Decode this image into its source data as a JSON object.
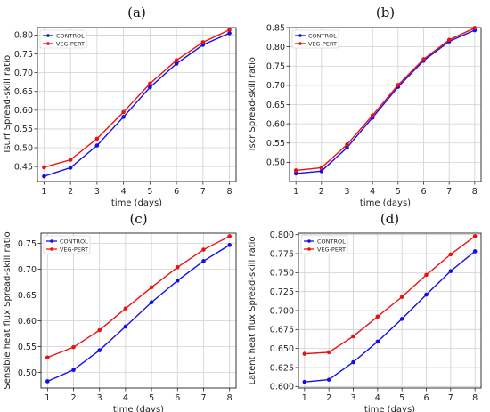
{
  "chart_data": [
    {
      "type": "line",
      "title": "(a)",
      "xlabel": "time (days)",
      "ylabel": "Tsurf Spread-skill ratio",
      "x": [
        1,
        2,
        3,
        4,
        5,
        6,
        7,
        8
      ],
      "xlim": [
        0.75,
        8.25
      ],
      "ylim": [
        0.41,
        0.82
      ],
      "yticks": [
        "0.45",
        "0.50",
        "0.55",
        "0.60",
        "0.65",
        "0.70",
        "0.75",
        "0.80"
      ],
      "xticks": [
        "1",
        "2",
        "3",
        "4",
        "5",
        "6",
        "7",
        "8"
      ],
      "grid": true,
      "legend": "top-left",
      "series": [
        {
          "name": "CONTROL",
          "color": "#1010ee",
          "values": [
            0.424,
            0.447,
            0.506,
            0.582,
            0.661,
            0.724,
            0.774,
            0.805
          ]
        },
        {
          "name": "VEG-PERT",
          "color": "#ee1010",
          "values": [
            0.448,
            0.468,
            0.524,
            0.595,
            0.671,
            0.733,
            0.781,
            0.814
          ]
        }
      ]
    },
    {
      "type": "line",
      "title": "(b)",
      "xlabel": "time (days)",
      "ylabel": "Tscr Spread-skill ratio",
      "x": [
        1,
        2,
        3,
        4,
        5,
        6,
        7,
        8
      ],
      "xlim": [
        0.75,
        8.25
      ],
      "ylim": [
        0.45,
        0.85
      ],
      "yticks": [
        "0.50",
        "0.55",
        "0.60",
        "0.65",
        "0.70",
        "0.75",
        "0.80",
        "0.85"
      ],
      "xticks": [
        "1",
        "2",
        "3",
        "4",
        "5",
        "6",
        "7",
        "8"
      ],
      "grid": true,
      "legend": "top-left",
      "series": [
        {
          "name": "CONTROL",
          "color": "#1010ee",
          "values": [
            0.471,
            0.477,
            0.538,
            0.616,
            0.696,
            0.764,
            0.814,
            0.843
          ]
        },
        {
          "name": "VEG-PERT",
          "color": "#ee1010",
          "values": [
            0.479,
            0.486,
            0.546,
            0.622,
            0.701,
            0.768,
            0.818,
            0.849
          ]
        }
      ]
    },
    {
      "type": "line",
      "title": "(c)",
      "xlabel": "time (days)",
      "ylabel": "Sensible heat flux Spread-skill ratio",
      "x": [
        1,
        2,
        3,
        4,
        5,
        6,
        7,
        8
      ],
      "xlim": [
        0.75,
        8.25
      ],
      "ylim": [
        0.47,
        0.77
      ],
      "yticks": [
        "0.50",
        "0.55",
        "0.60",
        "0.65",
        "0.70",
        "0.75"
      ],
      "xticks": [
        "1",
        "2",
        "3",
        "4",
        "5",
        "6",
        "7",
        "8"
      ],
      "grid": true,
      "legend": "top-left",
      "series": [
        {
          "name": "CONTROL",
          "color": "#1010ee",
          "values": [
            0.483,
            0.505,
            0.543,
            0.589,
            0.636,
            0.678,
            0.716,
            0.747
          ]
        },
        {
          "name": "VEG-PERT",
          "color": "#ee1010",
          "values": [
            0.529,
            0.549,
            0.582,
            0.624,
            0.665,
            0.704,
            0.738,
            0.764
          ]
        }
      ]
    },
    {
      "type": "line",
      "title": "(d)",
      "xlabel": "time (days)",
      "ylabel": "Latent heat flux Spread-skill ratio",
      "x": [
        1,
        2,
        3,
        4,
        5,
        6,
        7,
        8
      ],
      "xlim": [
        0.75,
        8.25
      ],
      "ylim": [
        0.598,
        0.802
      ],
      "yticks": [
        "0.600",
        "0.625",
        "0.650",
        "0.675",
        "0.700",
        "0.725",
        "0.750",
        "0.775",
        "0.800"
      ],
      "xticks": [
        "1",
        "2",
        "3",
        "4",
        "5",
        "6",
        "7",
        "8"
      ],
      "grid": true,
      "legend": "top-left",
      "series": [
        {
          "name": "CONTROL",
          "color": "#1010ee",
          "values": [
            0.606,
            0.609,
            0.632,
            0.659,
            0.689,
            0.721,
            0.752,
            0.778
          ]
        },
        {
          "name": "VEG-PERT",
          "color": "#ee1010",
          "values": [
            0.643,
            0.645,
            0.666,
            0.692,
            0.718,
            0.747,
            0.774,
            0.798
          ]
        }
      ]
    }
  ]
}
